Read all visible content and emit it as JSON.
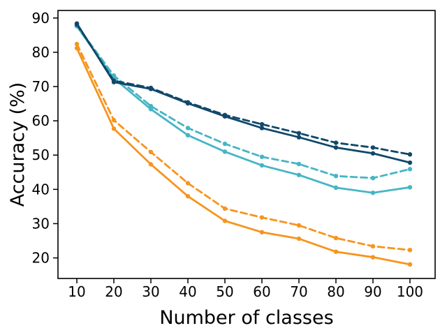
{
  "chart_data": {
    "type": "line",
    "title": "",
    "xlabel": "Number of classes",
    "ylabel": "Accuracy (%)",
    "x": [
      10,
      20,
      30,
      40,
      50,
      60,
      70,
      80,
      90,
      100
    ],
    "xticks": [
      10,
      20,
      30,
      40,
      50,
      60,
      70,
      80,
      90,
      100
    ],
    "yticks": [
      20,
      30,
      40,
      50,
      60,
      70,
      80,
      90
    ],
    "xlim": [
      4.9,
      106.8
    ],
    "ylim": [
      14,
      92.2
    ],
    "grid": false,
    "legend": "none",
    "marker": "circle",
    "series": [
      {
        "name": "orange-solid",
        "color": "#f7941d",
        "line_style": "solid",
        "values": [
          81.2,
          57.7,
          47.3,
          38.0,
          30.8,
          27.5,
          25.6,
          21.8,
          20.2,
          18.1
        ]
      },
      {
        "name": "orange-dashed",
        "color": "#f7941d",
        "line_style": "dashed",
        "values": [
          82.4,
          60.2,
          50.9,
          41.8,
          34.4,
          31.8,
          29.5,
          25.8,
          23.4,
          22.3
        ]
      },
      {
        "name": "teal-solid",
        "color": "#45b5c4",
        "line_style": "solid",
        "values": [
          87.6,
          72.4,
          63.4,
          55.8,
          51.0,
          47.0,
          44.2,
          40.5,
          39.0,
          40.6
        ]
      },
      {
        "name": "teal-dashed",
        "color": "#45b5c4",
        "line_style": "dashed",
        "values": [
          87.8,
          73.2,
          64.3,
          57.9,
          53.3,
          49.5,
          47.4,
          43.9,
          43.3,
          45.9
        ]
      },
      {
        "name": "dark-blue-solid",
        "color": "#10486a",
        "line_style": "solid",
        "values": [
          88.4,
          71.3,
          69.3,
          65.1,
          61.3,
          57.9,
          55.2,
          52.2,
          50.5,
          47.8
        ]
      },
      {
        "name": "dark-blue-dashed",
        "color": "#10486a",
        "line_style": "dashed",
        "values": [
          88.1,
          71.7,
          69.6,
          65.4,
          61.7,
          59.0,
          56.4,
          53.6,
          52.2,
          50.2
        ]
      }
    ],
    "axis_color": "#000000",
    "background_color": "#ffffff"
  }
}
